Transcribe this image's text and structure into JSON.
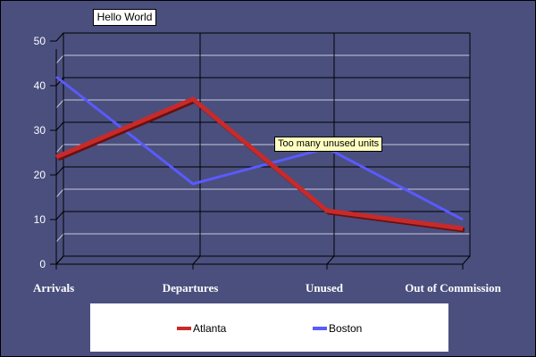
{
  "chart_data": {
    "type": "line",
    "title": "Hello World",
    "categories": [
      "Arrivals",
      "Departures",
      "Unused",
      "Out of Commission"
    ],
    "y_ticks": [
      "0",
      "10",
      "20",
      "30",
      "40",
      "50"
    ],
    "ylim": [
      0,
      50
    ],
    "grid": true,
    "legend_position": "bottom",
    "series": [
      {
        "name": "Atlanta",
        "values": [
          24,
          37,
          12,
          8
        ],
        "color": "#c82a2a"
      },
      {
        "name": "Boston",
        "values": [
          42,
          18,
          26,
          10
        ],
        "color": "#5a5aff"
      }
    ],
    "annotations": [
      {
        "text": "Too many unused units",
        "category": "Unused",
        "series": "Boston"
      }
    ]
  }
}
